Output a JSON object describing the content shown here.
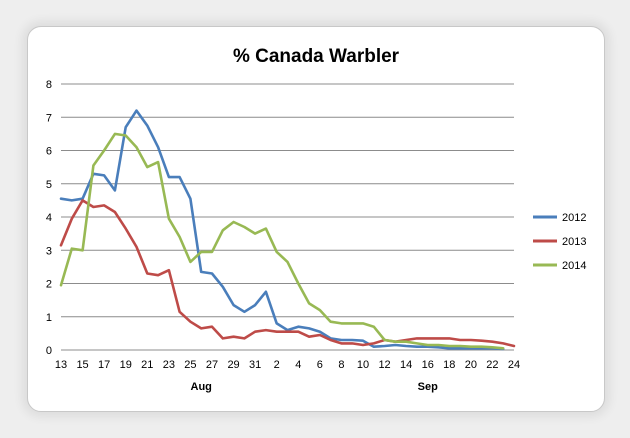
{
  "chart_data": {
    "type": "line",
    "title": "% Canada Warbler",
    "xlabel": "",
    "ylabel": "",
    "ylim": [
      0,
      8
    ],
    "yticks": [
      0,
      1,
      2,
      3,
      4,
      5,
      6,
      7,
      8
    ],
    "x_tick_labels": [
      "13",
      "15",
      "17",
      "19",
      "21",
      "23",
      "25",
      "27",
      "29",
      "31",
      "2",
      "4",
      "6",
      "8",
      "10",
      "12",
      "14",
      "16",
      "18",
      "20",
      "22",
      "24"
    ],
    "month_labels": [
      {
        "label": "Aug",
        "at_index": 13
      },
      {
        "label": "Sep",
        "at_index": 34
      }
    ],
    "x": [
      "Jul 13",
      "Jul 14",
      "Jul 15",
      "Jul 16",
      "Jul 17",
      "Jul 18",
      "Jul 19",
      "Jul 20",
      "Jul 21",
      "Jul 22",
      "Jul 23",
      "Jul 24",
      "Jul 25",
      "Jul 26",
      "Jul 27",
      "Jul 28",
      "Jul 29",
      "Jul 30",
      "Jul 31",
      "Aug 1",
      "Aug 2",
      "Aug 3",
      "Aug 4",
      "Aug 5",
      "Aug 6",
      "Aug 7",
      "Aug 8",
      "Aug 9",
      "Aug 10",
      "Aug 11",
      "Aug 12",
      "Aug 13",
      "Aug 14",
      "Aug 15",
      "Aug 16",
      "Aug 17",
      "Aug 18",
      "Aug 19",
      "Aug 20",
      "Aug 21",
      "Aug 22",
      "Aug 23",
      "Aug 24"
    ],
    "grid": true,
    "legend": "right",
    "series": [
      {
        "name": "2012",
        "color": "#4a7ebb",
        "values": [
          4.55,
          4.5,
          4.55,
          5.3,
          5.25,
          4.8,
          6.7,
          7.2,
          6.75,
          6.1,
          5.2,
          5.2,
          4.55,
          2.35,
          2.3,
          1.9,
          1.35,
          1.15,
          1.35,
          1.75,
          0.8,
          0.6,
          0.7,
          0.65,
          0.55,
          0.35,
          0.3,
          0.3,
          0.28,
          0.1,
          0.12,
          0.15,
          0.12,
          0.1,
          0.1,
          0.08,
          0.05,
          0.05,
          0.05,
          0.05,
          0.05,
          0.03,
          null
        ]
      },
      {
        "name": "2013",
        "color": "#be4b48",
        "values": [
          3.15,
          3.95,
          4.5,
          4.3,
          4.35,
          4.15,
          3.65,
          3.1,
          2.3,
          2.25,
          2.4,
          1.15,
          0.85,
          0.65,
          0.7,
          0.35,
          0.4,
          0.35,
          0.55,
          0.6,
          0.55,
          0.55,
          0.55,
          0.4,
          0.45,
          0.3,
          0.2,
          0.2,
          0.15,
          0.2,
          0.3,
          0.25,
          0.3,
          0.35,
          0.35,
          0.35,
          0.35,
          0.3,
          0.3,
          0.28,
          0.25,
          0.2,
          0.12
        ]
      },
      {
        "name": "2014",
        "color": "#98b954",
        "values": [
          1.95,
          3.05,
          3.0,
          5.55,
          6.0,
          6.5,
          6.45,
          6.1,
          5.5,
          5.65,
          3.95,
          3.4,
          2.65,
          2.95,
          2.95,
          3.6,
          3.85,
          3.7,
          3.5,
          3.65,
          2.95,
          2.65,
          2.0,
          1.4,
          1.2,
          0.85,
          0.8,
          0.8,
          0.8,
          0.7,
          0.3,
          0.25,
          0.25,
          0.2,
          0.15,
          0.15,
          0.12,
          0.12,
          0.1,
          0.1,
          0.08,
          0.05,
          null
        ]
      }
    ]
  }
}
